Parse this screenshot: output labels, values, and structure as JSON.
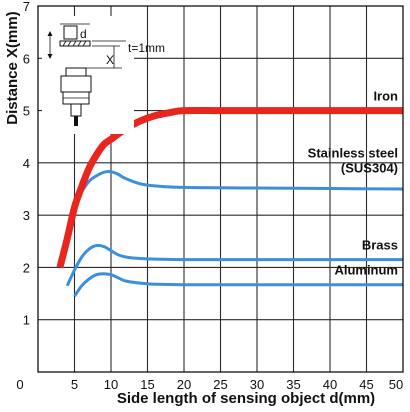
{
  "chart_data": {
    "type": "line",
    "xlabel": "Side length of sensing object d(mm)",
    "ylabel": "Distance X(mm)",
    "xlim": [
      0,
      50
    ],
    "ylim": [
      0,
      7
    ],
    "x_ticks": [
      "0",
      "5",
      "10",
      "15",
      "20",
      "25",
      "30",
      "35",
      "40",
      "45",
      "50"
    ],
    "y_ticks": [
      "1",
      "2",
      "3",
      "4",
      "5",
      "6",
      "7"
    ],
    "grid": true,
    "diagram_labels": {
      "d": "d",
      "x": "X",
      "t": "t=1mm"
    },
    "colors": {
      "iron": "#e8261e",
      "other": "#3b8fe0",
      "grid": "#2b2b2b",
      "background": "#ffffff"
    },
    "series": [
      {
        "name": "Iron",
        "color": "#e8261e",
        "x": [
          3,
          4,
          5,
          6,
          7,
          8,
          9,
          10,
          12,
          14,
          16,
          18,
          20,
          25,
          30,
          40,
          50
        ],
        "y": [
          2.0,
          2.55,
          3.15,
          3.55,
          3.9,
          4.15,
          4.35,
          4.45,
          4.65,
          4.8,
          4.9,
          4.96,
          5.0,
          5.0,
          5.0,
          5.0,
          5.0
        ]
      },
      {
        "name": "Stainless steel",
        "name2": "(SUS304)",
        "color": "#3b8fe0",
        "x": [
          3,
          4,
          5,
          6,
          7,
          8,
          9,
          10,
          11,
          12,
          14,
          16,
          20,
          30,
          40,
          50
        ],
        "y": [
          2.0,
          2.6,
          3.2,
          3.45,
          3.65,
          3.75,
          3.82,
          3.83,
          3.78,
          3.7,
          3.6,
          3.56,
          3.53,
          3.52,
          3.51,
          3.5
        ]
      },
      {
        "name": "Brass",
        "color": "#3b8fe0",
        "x": [
          4,
          5,
          6,
          7,
          8,
          9,
          10,
          11,
          12,
          14,
          16,
          20,
          30,
          40,
          50
        ],
        "y": [
          1.65,
          1.95,
          2.2,
          2.35,
          2.42,
          2.4,
          2.32,
          2.24,
          2.2,
          2.17,
          2.16,
          2.15,
          2.15,
          2.15,
          2.15
        ]
      },
      {
        "name": "Aluminum",
        "color": "#3b8fe0",
        "x": [
          5,
          6,
          7,
          8,
          9,
          10,
          11,
          12,
          14,
          16,
          20,
          30,
          40,
          50
        ],
        "y": [
          1.45,
          1.65,
          1.78,
          1.86,
          1.88,
          1.86,
          1.8,
          1.74,
          1.7,
          1.68,
          1.67,
          1.67,
          1.67,
          1.67
        ]
      }
    ]
  }
}
